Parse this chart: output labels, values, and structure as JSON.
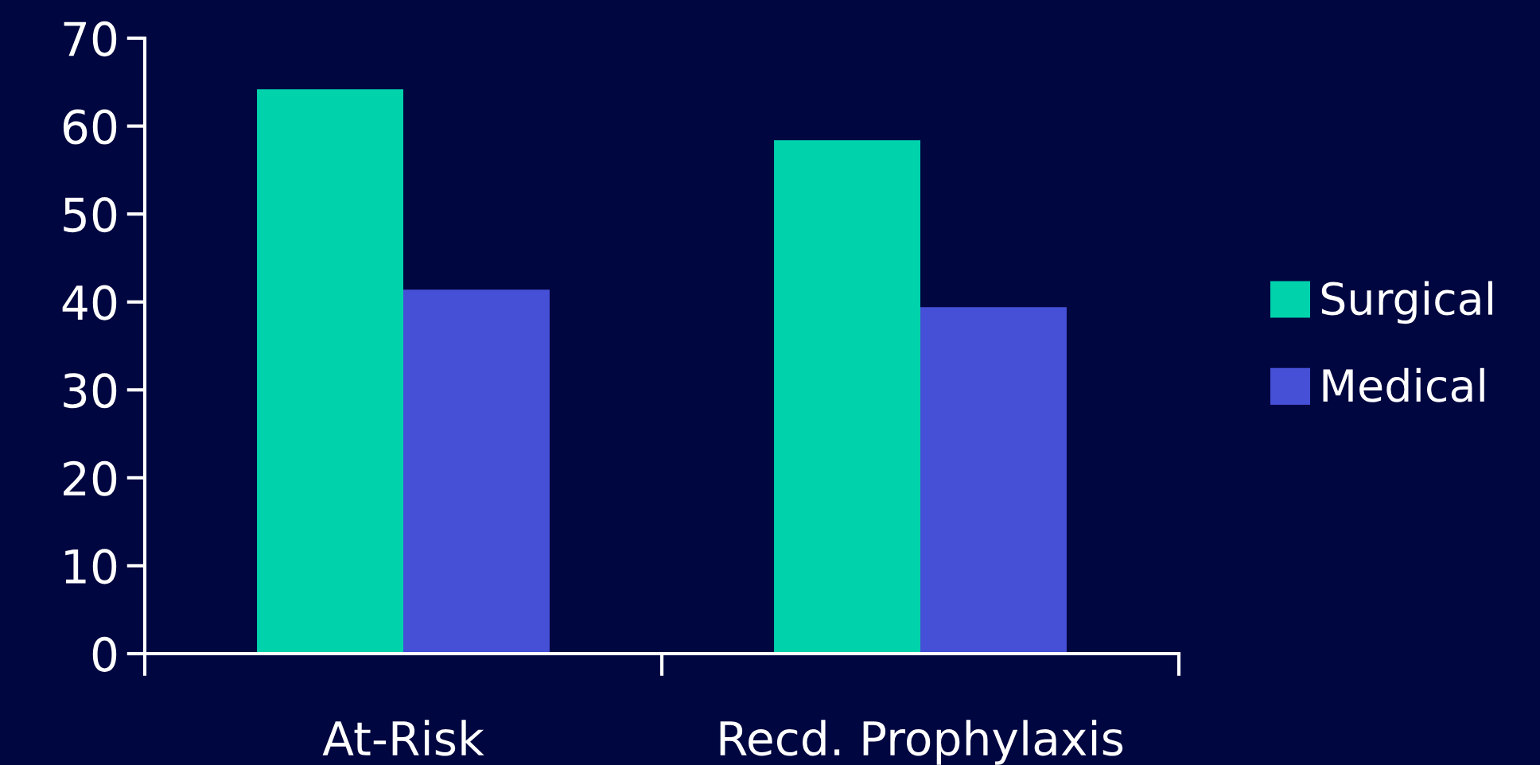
{
  "chart_data": {
    "type": "bar",
    "categories": [
      "At-Risk",
      "Recd. Prophylaxis"
    ],
    "series": [
      {
        "name": "Surgical",
        "color": "#00d2ac",
        "values": [
          64.2,
          58.4
        ]
      },
      {
        "name": "Medical",
        "color": "#4550d6",
        "values": [
          41.4,
          39.4
        ]
      }
    ],
    "ylim": [
      0,
      70
    ],
    "yticks": [
      0,
      10,
      20,
      30,
      40,
      50,
      60,
      70
    ],
    "grid": false,
    "legend": "right"
  }
}
